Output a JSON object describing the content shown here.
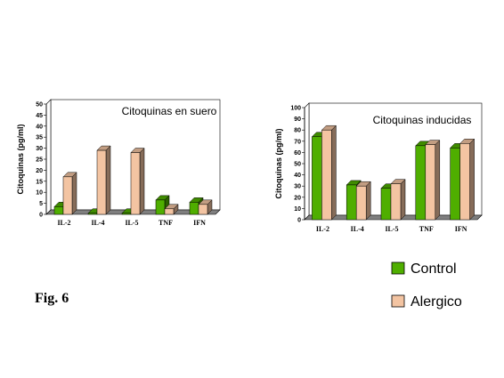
{
  "figure_label": "Fig. 6",
  "legend": [
    {
      "label": "Control",
      "color": "#4fae00"
    },
    {
      "label": "Alergico",
      "color": "#f3c4a2"
    }
  ],
  "chart_data": [
    {
      "type": "bar",
      "title": "Citoquinas en suero",
      "ylabel": "Citoquinas (pg/ml)",
      "categories": [
        "IL-2",
        "IL-4",
        "IL-5",
        "TNF",
        "IFN"
      ],
      "ylim": [
        0,
        50
      ],
      "yticks": [
        0,
        5,
        10,
        15,
        20,
        25,
        30,
        35,
        40,
        45,
        50
      ],
      "series": [
        {
          "name": "Control",
          "values": [
            3.5,
            0.5,
            0.5,
            6.5,
            5.5
          ]
        },
        {
          "name": "Alergico",
          "values": [
            17,
            29,
            28,
            2.5,
            4.5
          ]
        }
      ]
    },
    {
      "type": "bar",
      "title": "Citoquinas inducidas",
      "ylabel": "Citoquinas (pg/ml)",
      "categories": [
        "IL-2",
        "IL-4",
        "IL-5",
        "TNF",
        "IFN"
      ],
      "ylim": [
        0,
        100
      ],
      "yticks": [
        0,
        10,
        20,
        30,
        40,
        50,
        60,
        70,
        80,
        90,
        100
      ],
      "series": [
        {
          "name": "Control",
          "values": [
            74,
            31,
            28,
            66,
            64
          ]
        },
        {
          "name": "Alergico",
          "values": [
            80,
            30,
            32,
            67,
            68
          ]
        }
      ]
    }
  ]
}
